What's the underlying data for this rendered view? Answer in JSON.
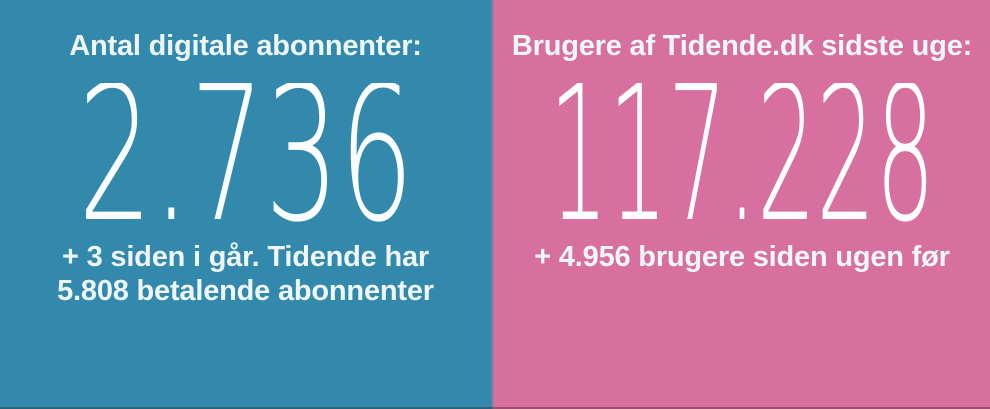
{
  "colors": {
    "left_bg": "#3289ab",
    "right_bg": "#d7709e",
    "heading_text": "#eef6f8",
    "number_text": "#fbfdfe"
  },
  "panels": [
    {
      "id": "digital-subscribers",
      "title": "Antal digitale abonnenter:",
      "value": "2.736",
      "subtitle_lines": [
        "+ 3 siden i går. Tidende har",
        "5.808 betalende abonnenter"
      ]
    },
    {
      "id": "weekly-users",
      "title": "Brugere af Tidende.dk sidste uge:",
      "value": "117.228",
      "subtitle_lines": [
        "+ 4.956 brugere siden ugen før"
      ]
    }
  ],
  "chart_data": {
    "type": "table",
    "metrics": [
      {
        "label": "Antal digitale abonnenter",
        "value": 2736,
        "change_since_yesterday": 3,
        "total_paying_subscribers": 5808
      },
      {
        "label": "Brugere af Tidende.dk sidste uge",
        "value": 117228,
        "change_since_previous_week": 4956
      }
    ]
  }
}
